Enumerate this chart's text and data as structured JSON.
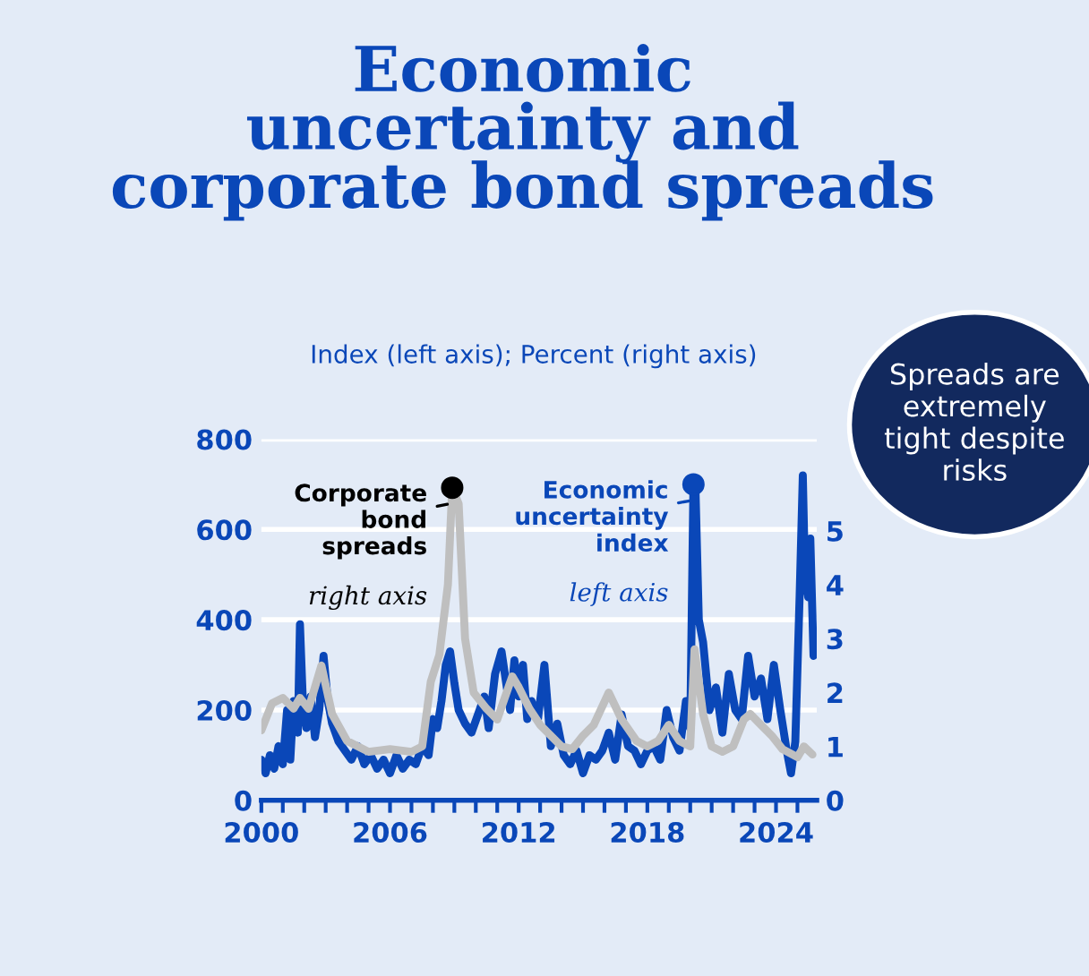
{
  "chart_data": {
    "type": "line",
    "title": "Economic\nuncertainty and\ncorporate bond spreads",
    "subtitle": "Index (left axis); Percent (right axis)",
    "annotations": [
      "left axis",
      "right axis",
      "Spreads are\nextremely\ntight despite\nrisks"
    ],
    "series": [
      {
        "name": "Economic uncertainty index",
        "color": "#0a47b8",
        "axis": "y",
        "x": [
          2000.0,
          2000.2,
          2000.4,
          2000.6,
          2000.8,
          2001.0,
          2001.2,
          2001.35,
          2001.5,
          2001.7,
          2001.8,
          2001.95,
          2002.1,
          2002.3,
          2002.5,
          2002.7,
          2002.9,
          2003.1,
          2003.3,
          2003.6,
          2003.9,
          2004.2,
          2004.5,
          2004.8,
          2005.1,
          2005.4,
          2005.7,
          2006.0,
          2006.3,
          2006.6,
          2006.9,
          2007.2,
          2007.5,
          2007.8,
          2008.0,
          2008.2,
          2008.4,
          2008.6,
          2008.8,
          2009.0,
          2009.2,
          2009.5,
          2009.8,
          2010.1,
          2010.4,
          2010.6,
          2010.9,
          2011.2,
          2011.6,
          2011.8,
          2012.0,
          2012.2,
          2012.4,
          2012.6,
          2012.9,
          2013.2,
          2013.5,
          2013.8,
          2014.1,
          2014.4,
          2014.7,
          2015.0,
          2015.3,
          2015.6,
          2015.9,
          2016.2,
          2016.5,
          2016.8,
          2017.1,
          2017.4,
          2017.7,
          2018.0,
          2018.3,
          2018.6,
          2018.9,
          2019.2,
          2019.5,
          2019.8,
          2020.0,
          2020.15,
          2020.25,
          2020.4,
          2020.6,
          2020.9,
          2021.2,
          2021.5,
          2021.8,
          2022.1,
          2022.4,
          2022.7,
          2023.0,
          2023.3,
          2023.6,
          2023.9,
          2024.2,
          2024.5,
          2024.7,
          2024.9,
          2025.1,
          2025.25,
          2025.35,
          2025.5,
          2025.6,
          2025.75
        ],
        "values": [
          90,
          60,
          100,
          70,
          120,
          80,
          200,
          90,
          220,
          150,
          390,
          200,
          160,
          230,
          140,
          200,
          320,
          220,
          170,
          130,
          110,
          90,
          120,
          80,
          100,
          70,
          90,
          60,
          100,
          70,
          90,
          80,
          120,
          100,
          180,
          160,
          220,
          300,
          330,
          260,
          200,
          170,
          150,
          190,
          230,
          160,
          280,
          330,
          200,
          310,
          230,
          300,
          180,
          220,
          180,
          300,
          120,
          170,
          100,
          80,
          110,
          60,
          100,
          90,
          110,
          150,
          90,
          190,
          120,
          110,
          80,
          110,
          120,
          90,
          200,
          140,
          110,
          220,
          160,
          700,
          680,
          400,
          350,
          200,
          250,
          150,
          280,
          200,
          180,
          320,
          230,
          270,
          180,
          300,
          200,
          110,
          60,
          130,
          450,
          720,
          500,
          450,
          580,
          320
        ]
      },
      {
        "name": "Corporate bond spreads",
        "color": "#bfbfbf",
        "axis": "y2",
        "x": [
          2000.0,
          2000.5,
          2001.0,
          2001.5,
          2001.8,
          2002.2,
          2002.8,
          2003.3,
          2004.0,
          2005.0,
          2006.0,
          2007.0,
          2007.5,
          2007.9,
          2008.3,
          2008.7,
          2008.9,
          2009.2,
          2009.5,
          2009.9,
          2010.5,
          2011.0,
          2011.7,
          2012.0,
          2012.5,
          2013.0,
          2014.0,
          2014.5,
          2015.0,
          2015.5,
          2016.2,
          2016.8,
          2017.5,
          2018.0,
          2018.5,
          2019.0,
          2019.5,
          2020.0,
          2020.2,
          2020.6,
          2021.0,
          2021.5,
          2022.0,
          2022.5,
          2022.8,
          2023.3,
          2023.8,
          2024.3,
          2025.0,
          2025.3,
          2025.7
        ],
        "values": [
          1.3,
          1.8,
          1.9,
          1.7,
          1.9,
          1.7,
          2.5,
          1.6,
          1.1,
          0.9,
          0.95,
          0.9,
          1.0,
          2.2,
          2.7,
          4.0,
          5.8,
          5.5,
          3.0,
          2.0,
          1.7,
          1.5,
          2.3,
          2.1,
          1.7,
          1.4,
          1.0,
          0.95,
          1.2,
          1.4,
          2.0,
          1.5,
          1.1,
          1.0,
          1.1,
          1.4,
          1.1,
          1.0,
          2.8,
          1.6,
          1.0,
          0.9,
          1.0,
          1.5,
          1.6,
          1.4,
          1.2,
          0.95,
          0.8,
          1.0,
          0.85
        ]
      }
    ],
    "xlim": [
      2000,
      2025.9
    ],
    "xticks": [
      2000,
      {
        "value": 2001,
        "label": null
      },
      {
        "value": 2002,
        "label": null
      },
      {
        "value": 2003,
        "label": null
      },
      {
        "value": 2004,
        "label": null
      },
      {
        "value": 2005,
        "label": null
      },
      2006,
      {
        "value": 2007,
        "label": null
      },
      {
        "value": 2008,
        "label": null
      },
      {
        "value": 2009,
        "label": null
      },
      {
        "value": 2010,
        "label": null
      },
      {
        "value": 2011,
        "label": null
      },
      2012,
      {
        "value": 2013,
        "label": null
      },
      {
        "value": 2014,
        "label": null
      },
      {
        "value": 2015,
        "label": null
      },
      {
        "value": 2016,
        "label": null
      },
      {
        "value": 2017,
        "label": null
      },
      2018,
      {
        "value": 2019,
        "label": null
      },
      {
        "value": 2020,
        "label": null
      },
      {
        "value": 2021,
        "label": null
      },
      {
        "value": 2022,
        "label": null
      },
      {
        "value": 2023,
        "label": null
      },
      2024,
      {
        "value": 2025,
        "label": null
      }
    ],
    "ylim": [
      0,
      800
    ],
    "yticks": [
      0,
      200,
      400,
      600,
      800
    ],
    "y2lim": [
      0,
      6.7
    ],
    "y2ticks": [
      0,
      1,
      2,
      3,
      4,
      5
    ],
    "grid": "y",
    "legend": "top"
  }
}
